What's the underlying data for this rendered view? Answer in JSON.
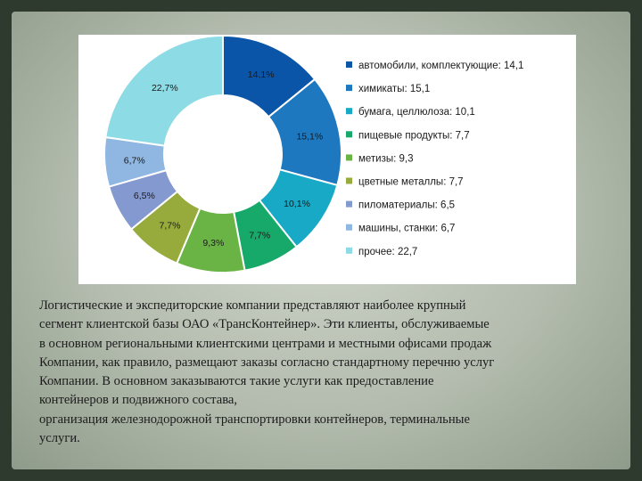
{
  "chart_data": {
    "type": "pie",
    "variant": "donut",
    "legend_position": "right",
    "slices": [
      {
        "legend": "автомобили, комплектующие: 14,1",
        "label": "14,1%",
        "value": 14.1,
        "color": "#0a55a8"
      },
      {
        "legend": "химикаты: 15,1",
        "label": "15,1%",
        "value": 15.1,
        "color": "#1d78bf"
      },
      {
        "legend": "бумага, целлюлоза: 10,1",
        "label": "10,1%",
        "value": 10.1,
        "color": "#17a9c6"
      },
      {
        "legend": "пищевые продукты: 7,7",
        "label": "7,7%",
        "value": 7.7,
        "color": "#16a96a"
      },
      {
        "legend": "метизы: 9,3",
        "label": "9,3%",
        "value": 9.3,
        "color": "#6ab446"
      },
      {
        "legend": "цветные металлы: 7,7",
        "label": "7,7%",
        "value": 7.7,
        "color": "#97aa3c"
      },
      {
        "legend": "пиломатериалы: 6,5",
        "label": "6,5%",
        "value": 6.5,
        "color": "#8499cf"
      },
      {
        "legend": "машины, станки: 6,7",
        "label": "6,7%",
        "value": 6.7,
        "color": "#8fb7e2"
      },
      {
        "legend": "прочее: 22,7",
        "label": "22,7%",
        "value": 22.7,
        "color": "#8ddbe4"
      }
    ]
  },
  "text": {
    "paragraph_lines": [
      "Логистические и экспедиторские компании представляют наиболее крупный",
      "сегмент клиентской базы ОАО «ТрансКонтейнер». Эти клиенты, обслуживаемые",
      "в основном региональными клиентскими центрами и местными офисами продаж",
      "Компании, как правило, размещают заказы согласно стандартному перечню услуг",
      "Компании. В основном заказываются такие услуги как предоставление",
      "контейнеров и подвижного состава,",
      "организация железнодорожной транспортировки контейнеров, терминальные",
      "услуги."
    ]
  }
}
